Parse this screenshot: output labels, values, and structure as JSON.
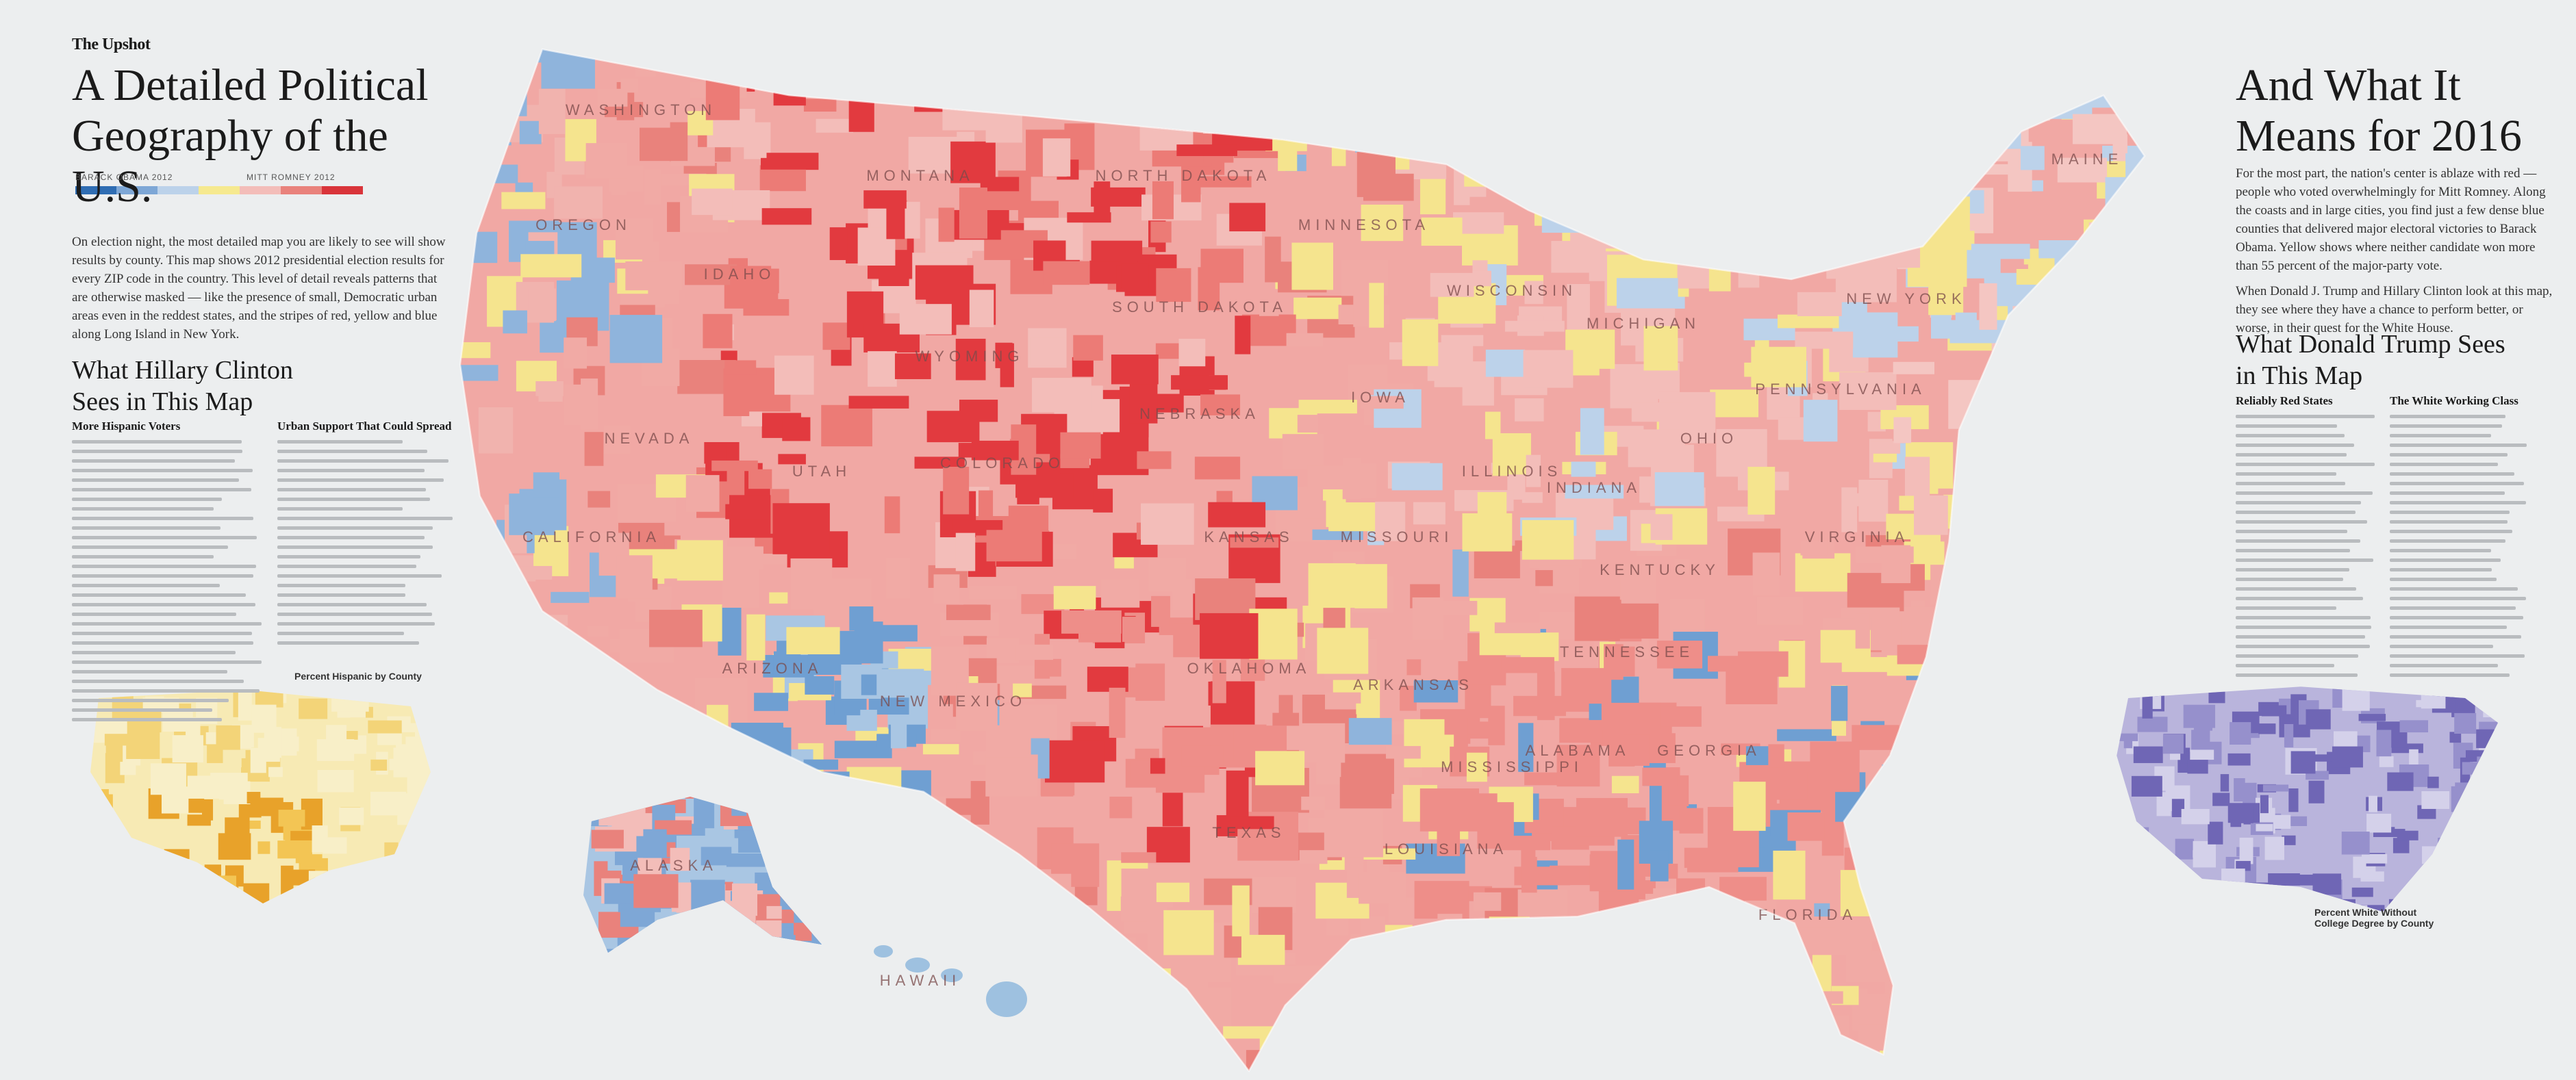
{
  "header": {
    "section": "The Upshot",
    "title_left": "A Detailed Political Geography of the U.S.",
    "title_right": "And What It Means for 2016"
  },
  "legend": {
    "left_label": "BARACK OBAMA 2012",
    "right_label": "MITT ROMNEY 2012"
  },
  "intro_left": "On election night, the most detailed map you are likely to see will show results by county. This map shows 2012 presidential election results for every ZIP code in the country. This level of detail reveals patterns that are otherwise masked — like the presence of small, Democratic urban areas even in the reddest states, and the stripes of red, yellow and blue along Long Island in New York.",
  "intro_right": [
    "For the most part, the nation's center is ablaze with red — people who voted overwhelmingly for Mitt Romney. Along the coasts and in large cities, you find just a few dense blue counties that delivered major electoral victories to Barack Obama. Yellow shows where neither candidate won more than 55 percent of the major-party vote.",
    "When Donald J. Trump and Hillary Clinton look at this map, they see where they have a chance to perform better, or worse, in their quest for the White House."
  ],
  "clinton": {
    "heading": "What Hillary Clinton Sees in This Map",
    "subheads": [
      "More Hispanic Voters",
      "Urban Support That Could Spread"
    ]
  },
  "trump": {
    "heading": "What Donald Trump Sees in This Map",
    "subheads": [
      "Reliably Red States",
      "The White Working Class"
    ]
  },
  "insets": {
    "hispanic": "Percent Hispanic by County",
    "white_no_college": "Percent White Without College Degree by County"
  },
  "state_labels": [
    "WASHINGTON",
    "OREGON",
    "CALIFORNIA",
    "NEVADA",
    "IDAHO",
    "MONTANA",
    "WYOMING",
    "UTAH",
    "COLORADO",
    "ARIZONA",
    "NEW MEXICO",
    "NORTH DAKOTA",
    "SOUTH DAKOTA",
    "NEBRASKA",
    "KANSAS",
    "OKLAHOMA",
    "TEXAS",
    "MINNESOTA",
    "IOWA",
    "MISSOURI",
    "ARKANSAS",
    "LOUISIANA",
    "WISCONSIN",
    "ILLINOIS",
    "MISSISSIPPI",
    "MICHIGAN",
    "INDIANA",
    "KENTUCKY",
    "TENNESSEE",
    "ALABAMA",
    "GEORGIA",
    "FLORIDA",
    "OHIO",
    "PENNSYLVANIA",
    "NEW YORK",
    "VIRGINIA",
    "MAINE",
    "ALASKA",
    "HAWAII"
  ]
}
